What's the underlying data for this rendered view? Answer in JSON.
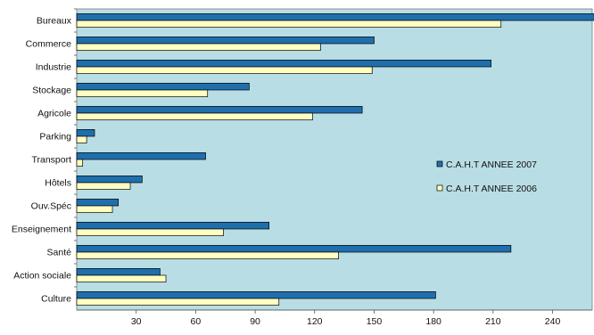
{
  "chart_data": {
    "type": "bar",
    "orientation": "horizontal",
    "title": "",
    "xlabel": "",
    "ylabel": "",
    "categories": [
      "Bureaux",
      "Commerce",
      "Industrie",
      "Stockage",
      "Agricole",
      "Parking",
      "Transport",
      "Hôtels",
      "Ouv.Spéc",
      "Enseignement",
      "Santé",
      "Action sociale",
      "Culture"
    ],
    "series": [
      {
        "name": "C.A.H.T ANNEE 2007",
        "color": "#1f6fad",
        "values": [
          261,
          150,
          209,
          87,
          144,
          9,
          65,
          33,
          21,
          97,
          219,
          42,
          181
        ]
      },
      {
        "name": "C.A.H.T ANNEE 2006",
        "color": "#ffffc2",
        "values": [
          214,
          123,
          149,
          66,
          119,
          5,
          3,
          27,
          18,
          74,
          132,
          45,
          102
        ]
      }
    ],
    "xlim": [
      0,
      260
    ],
    "xticks": [
      30,
      60,
      90,
      120,
      150,
      180,
      210,
      240
    ],
    "grid": false,
    "plot_background": "#b9dde4",
    "legend_position": "right"
  }
}
